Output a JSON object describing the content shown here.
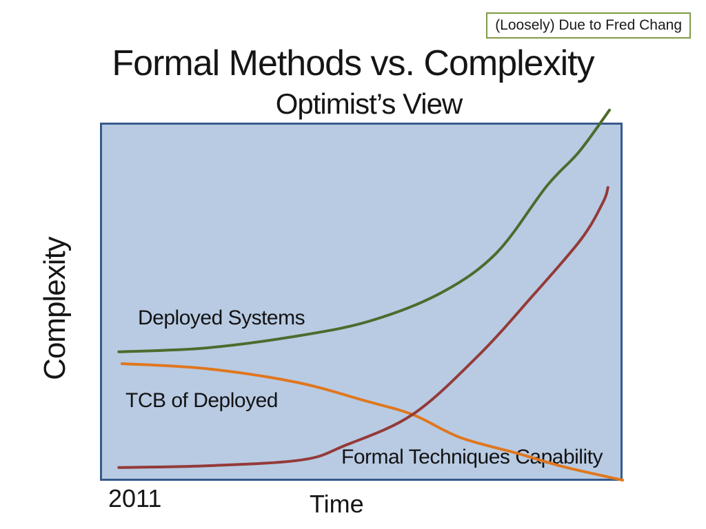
{
  "attribution": {
    "label": "(Loosely) Due to Fred Chang",
    "border_color": "#7e9c45"
  },
  "title": "Formal Methods vs. Complexity",
  "subtitle": "Optimist’s View",
  "chart_data": {
    "type": "line",
    "title": "Formal Methods vs. Complexity",
    "subtitle": "Optimist’s View",
    "xlabel": "Time",
    "ylabel": "Complexity",
    "x_ticks": [
      "2011"
    ],
    "y_ticks": [],
    "grid": false,
    "legend_position": "inline-labels",
    "plot_bg": "#b8cbe3",
    "plot_border": "#365a8c",
    "axis_ranges_note": "no numeric scales shown; points are normalized fractions of plot area (x: 0=left/2011, 1=right; y: 0=bottom, 1=top)",
    "series": [
      {
        "name": "Deployed Systems",
        "color": "#4d6b2d",
        "points": [
          [
            0.036,
            0.36
          ],
          [
            0.204,
            0.371
          ],
          [
            0.385,
            0.406
          ],
          [
            0.521,
            0.448
          ],
          [
            0.653,
            0.525
          ],
          [
            0.758,
            0.635
          ],
          [
            0.855,
            0.823
          ],
          [
            0.917,
            0.919
          ],
          [
            0.975,
            1.035
          ]
        ]
      },
      {
        "name": "TCB of Deployed",
        "color": "#e0771e",
        "points": [
          [
            0.042,
            0.327
          ],
          [
            0.204,
            0.313
          ],
          [
            0.376,
            0.275
          ],
          [
            0.508,
            0.223
          ],
          [
            0.598,
            0.185
          ],
          [
            0.689,
            0.121
          ],
          [
            0.798,
            0.077
          ],
          [
            0.89,
            0.038
          ],
          [
            1.0,
            0.002
          ]
        ]
      },
      {
        "name": "Formal Techniques Capability",
        "color": "#943a38",
        "points": [
          [
            0.036,
            0.037
          ],
          [
            0.204,
            0.042
          ],
          [
            0.385,
            0.058
          ],
          [
            0.468,
            0.098
          ],
          [
            0.598,
            0.185
          ],
          [
            0.723,
            0.348
          ],
          [
            0.827,
            0.515
          ],
          [
            0.921,
            0.675
          ],
          [
            0.963,
            0.779
          ],
          [
            0.972,
            0.819
          ]
        ]
      }
    ]
  }
}
